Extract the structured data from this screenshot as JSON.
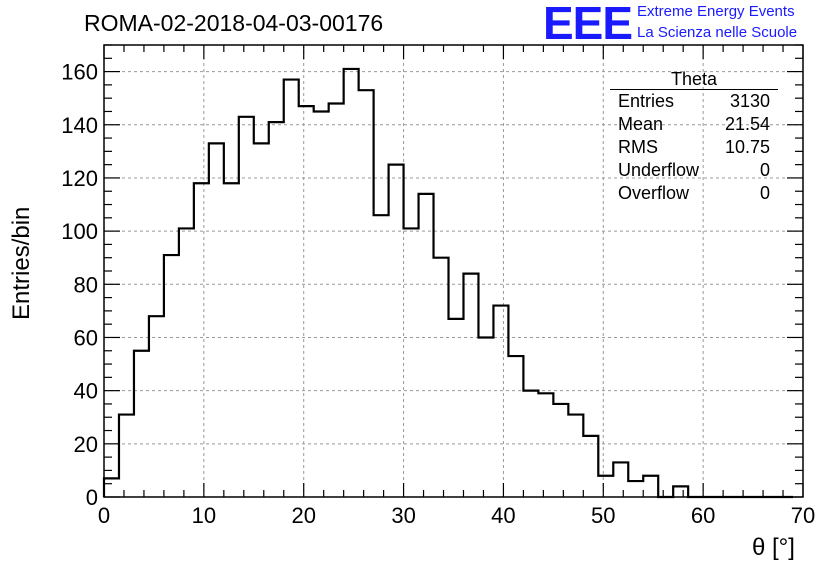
{
  "header": {
    "title": "ROMA-02-2018-04-03-00176",
    "logo_text": "EEE",
    "logo_line1": "Extreme Energy Events",
    "logo_line2": "La Scienza nelle Scuole"
  },
  "stats_box": {
    "name": "Theta",
    "rows": [
      {
        "label": "Entries",
        "value": "3130"
      },
      {
        "label": "Mean",
        "value": "21.54"
      },
      {
        "label": "RMS",
        "value": "10.75"
      },
      {
        "label": "Underflow",
        "value": "0"
      },
      {
        "label": "Overflow",
        "value": "0"
      }
    ]
  },
  "chart_data": {
    "type": "bar",
    "title": "ROMA-02-2018-04-03-00176",
    "xlabel": "θ [°]",
    "ylabel": "Entries/bin",
    "xlim": [
      0,
      70
    ],
    "ylim": [
      0,
      170
    ],
    "bin_width": 1.5,
    "x_ticks": [
      0,
      10,
      20,
      30,
      40,
      50,
      60,
      70
    ],
    "y_ticks": [
      0,
      20,
      40,
      60,
      80,
      100,
      120,
      140,
      160
    ],
    "grid": true,
    "values": [
      7,
      31,
      55,
      68,
      91,
      101,
      118,
      133,
      118,
      143,
      133,
      141,
      157,
      147,
      145,
      148,
      161,
      153,
      106,
      125,
      101,
      114,
      90,
      67,
      84,
      60,
      72,
      53,
      40,
      39,
      35,
      31,
      23,
      8,
      13,
      6,
      8,
      0,
      4,
      0,
      0,
      0,
      0,
      0,
      0,
      0
    ],
    "colors": {
      "line": "#000000",
      "grid": "#999999"
    }
  }
}
